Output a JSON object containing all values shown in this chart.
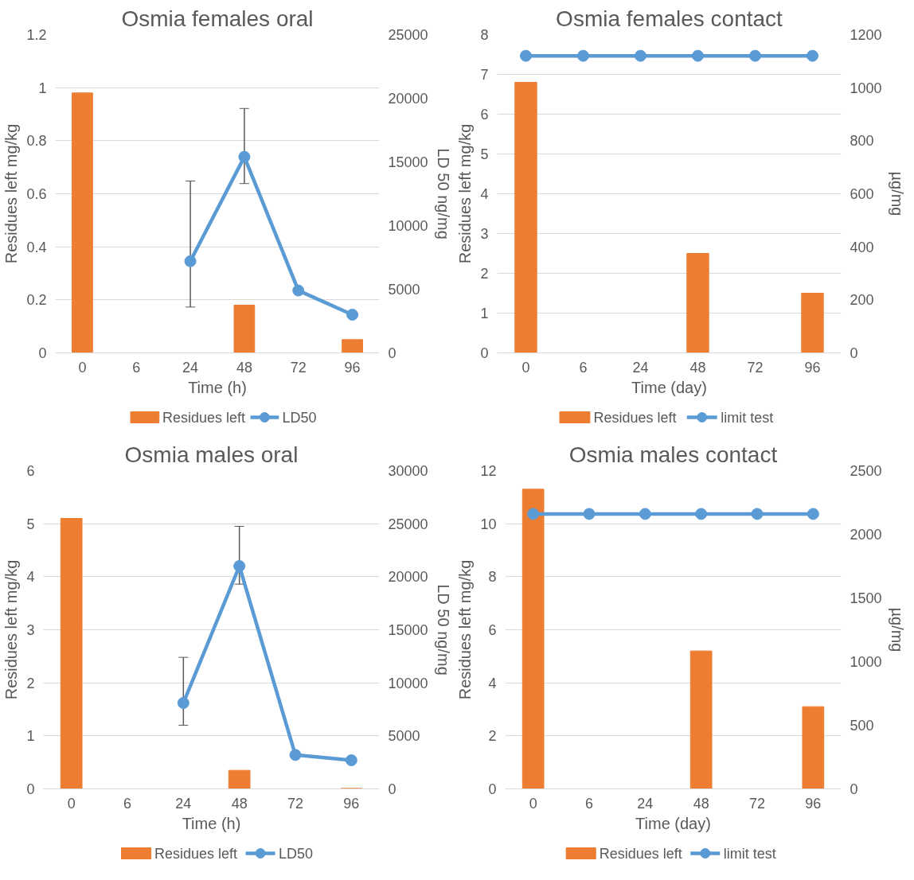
{
  "chart_data": [
    {
      "type": "bar",
      "title": "Osmia females oral",
      "xlabel": "Time (h)",
      "ylabel": "Residues left mg/kg",
      "y2label": "LD 50 ng/mg",
      "categories": [
        "0",
        "6",
        "24",
        "48",
        "72",
        "96"
      ],
      "ylim": [
        0,
        1.2
      ],
      "yticks": [
        0,
        0.2,
        0.4,
        0.6,
        0.8,
        1,
        1.2
      ],
      "y2lim": [
        0,
        25000
      ],
      "y2ticks": [
        0,
        5000,
        10000,
        15000,
        20000,
        25000
      ],
      "grid": "y",
      "legend": "bottom",
      "series": [
        {
          "name": "Residues left",
          "color": "#ed7d31",
          "values": [
            0.98,
            0,
            0,
            0.18,
            0,
            0.05
          ]
        },
        {
          "name": "LD50",
          "type": "line",
          "axis": "y2",
          "marker": "circle",
          "color": "#5b9bd5",
          "values": [
            null,
            null,
            7200,
            15400,
            4900,
            3000
          ],
          "errors": [
            null,
            null,
            [
              3600,
              13500
            ],
            [
              13300,
              19200
            ],
            null,
            null
          ]
        }
      ]
    },
    {
      "type": "bar",
      "title": "Osmia females contact",
      "xlabel": "Time (day)",
      "ylabel": "Residues left mg/kg",
      "y2label": "µg/mg",
      "categories": [
        "0",
        "6",
        "24",
        "48",
        "72",
        "96"
      ],
      "ylim": [
        0,
        8
      ],
      "yticks": [
        0,
        1,
        2,
        3,
        4,
        5,
        6,
        7,
        8
      ],
      "y2lim": [
        0,
        1200
      ],
      "y2ticks": [
        0,
        200,
        400,
        600,
        800,
        1000,
        1200
      ],
      "grid": "y",
      "legend": "bottom",
      "series": [
        {
          "name": "Residues left",
          "color": "#ed7d31",
          "values": [
            6.8,
            0,
            0,
            2.5,
            0,
            1.5
          ]
        },
        {
          "name": "limit test",
          "type": "line",
          "axis": "y2",
          "marker": "circle",
          "color": "#5b9bd5",
          "values": [
            1120,
            1120,
            1120,
            1120,
            1120,
            1120
          ]
        }
      ]
    },
    {
      "type": "bar",
      "title": "Osmia males oral",
      "xlabel": "Time (h)",
      "ylabel": "Residues left mg/kg",
      "y2label": "LD 50 ng/mg",
      "categories": [
        "0",
        "6",
        "24",
        "48",
        "72",
        "96"
      ],
      "ylim": [
        0,
        6
      ],
      "yticks": [
        0,
        1,
        2,
        3,
        4,
        5,
        6
      ],
      "y2lim": [
        0,
        30000
      ],
      "y2ticks": [
        0,
        5000,
        10000,
        15000,
        20000,
        25000,
        30000
      ],
      "grid": "y",
      "legend": "bottom",
      "series": [
        {
          "name": "Residues left",
          "color": "#ed7d31",
          "values": [
            5.1,
            0,
            0,
            0.35,
            0,
            0.01
          ]
        },
        {
          "name": "LD50",
          "type": "line",
          "axis": "y2",
          "marker": "circle",
          "color": "#5b9bd5",
          "values": [
            null,
            null,
            8100,
            21000,
            3200,
            2700
          ],
          "errors": [
            null,
            null,
            [
              6000,
              12400
            ],
            [
              19300,
              24750
            ],
            null,
            null
          ]
        }
      ]
    },
    {
      "type": "bar",
      "title": "Osmia males contact",
      "xlabel": "Time (day)",
      "ylabel": "Residues left mg/kg",
      "y2label": "µg/mg",
      "categories": [
        "0",
        "6",
        "24",
        "48",
        "72",
        "96"
      ],
      "ylim": [
        0,
        12
      ],
      "yticks": [
        0,
        2,
        4,
        6,
        8,
        10,
        12
      ],
      "y2lim": [
        0,
        2500
      ],
      "y2ticks": [
        0,
        500,
        1000,
        1500,
        2000,
        2500
      ],
      "grid": "y",
      "legend": "bottom",
      "series": [
        {
          "name": "Residues left",
          "color": "#ed7d31",
          "values": [
            11.3,
            0,
            0,
            5.2,
            0,
            3.1
          ]
        },
        {
          "name": "limit test",
          "type": "line",
          "axis": "y2",
          "marker": "circle",
          "color": "#5b9bd5",
          "values": [
            2160,
            2160,
            2160,
            2160,
            2160,
            2160
          ]
        }
      ]
    }
  ]
}
